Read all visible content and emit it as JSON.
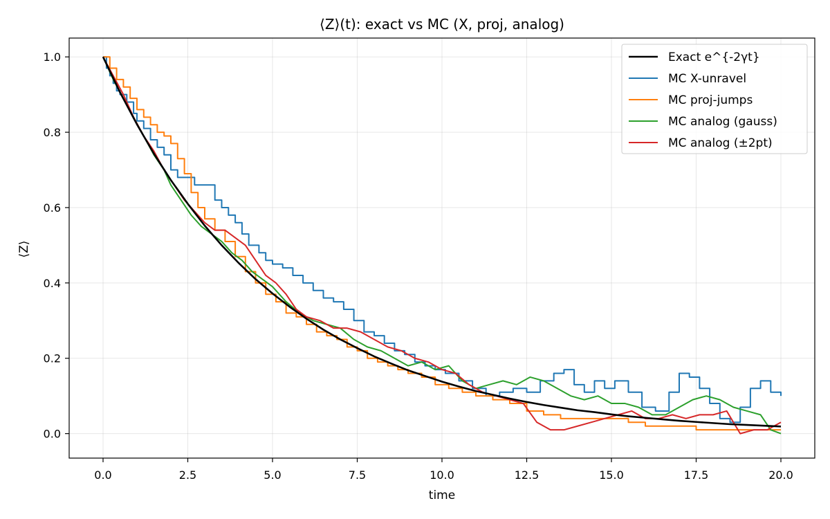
{
  "chart_data": {
    "type": "line",
    "title": "⟨Z⟩(t): exact vs MC (X, proj, analog)",
    "xlabel": "time",
    "ylabel": "⟨Z⟩",
    "xlim": [
      -1.0,
      21.0
    ],
    "ylim": [
      -0.065,
      1.05
    ],
    "xticks": [
      0,
      2.5,
      5,
      7.5,
      10,
      12.5,
      15,
      17.5,
      20
    ],
    "xtick_labels": [
      "0.0",
      "2.5",
      "5.0",
      "7.5",
      "10.0",
      "12.5",
      "15.0",
      "17.5",
      "20.0"
    ],
    "yticks": [
      0,
      0.2,
      0.4,
      0.6,
      0.8,
      1.0
    ],
    "ytick_labels": [
      "0.0",
      "0.2",
      "0.4",
      "0.6",
      "0.8",
      "1.0"
    ],
    "grid": true,
    "legend_position": "top-right",
    "series": [
      {
        "name": "Exact e^{-2γt}",
        "color": "#000000",
        "style": "smooth",
        "x": [
          0,
          0.5,
          1,
          1.5,
          2,
          2.5,
          3,
          3.5,
          4,
          4.5,
          5,
          5.5,
          6,
          6.5,
          7,
          7.5,
          8,
          8.5,
          9,
          9.5,
          10,
          10.5,
          11,
          11.5,
          12,
          12.5,
          13,
          13.5,
          14,
          14.5,
          15,
          15.5,
          16,
          16.5,
          17,
          17.5,
          18,
          18.5,
          19,
          19.5,
          20
        ],
        "y": [
          1.0,
          0.906,
          0.821,
          0.743,
          0.673,
          0.61,
          0.552,
          0.5,
          0.453,
          0.41,
          0.372,
          0.337,
          0.305,
          0.276,
          0.25,
          0.227,
          0.205,
          0.186,
          0.168,
          0.153,
          0.138,
          0.125,
          0.113,
          0.103,
          0.093,
          0.084,
          0.076,
          0.069,
          0.062,
          0.057,
          0.051,
          0.046,
          0.042,
          0.038,
          0.034,
          0.031,
          0.028,
          0.025,
          0.023,
          0.021,
          0.019
        ]
      },
      {
        "name": "MC X-unravel",
        "color": "#1f77b4",
        "style": "step",
        "x": [
          0,
          0.1,
          0.2,
          0.3,
          0.4,
          0.5,
          0.7,
          0.9,
          1.0,
          1.2,
          1.4,
          1.6,
          1.8,
          2.0,
          2.2,
          2.4,
          2.7,
          3.0,
          3.3,
          3.5,
          3.7,
          3.9,
          4.1,
          4.3,
          4.6,
          4.8,
          5.0,
          5.3,
          5.6,
          5.9,
          6.2,
          6.5,
          6.8,
          7.1,
          7.4,
          7.7,
          8.0,
          8.3,
          8.6,
          8.9,
          9.2,
          9.5,
          9.8,
          10.1,
          10.5,
          10.9,
          11.3,
          11.7,
          12.1,
          12.5,
          12.9,
          13.3,
          13.6,
          13.9,
          14.2,
          14.5,
          14.8,
          15.1,
          15.5,
          15.9,
          16.3,
          16.7,
          17.0,
          17.3,
          17.6,
          17.9,
          18.2,
          18.5,
          18.8,
          19.1,
          19.4,
          19.7,
          20.0
        ],
        "y": [
          1.0,
          0.97,
          0.95,
          0.93,
          0.91,
          0.9,
          0.88,
          0.85,
          0.83,
          0.81,
          0.78,
          0.76,
          0.74,
          0.7,
          0.68,
          0.68,
          0.66,
          0.66,
          0.62,
          0.6,
          0.58,
          0.56,
          0.53,
          0.5,
          0.48,
          0.46,
          0.45,
          0.44,
          0.42,
          0.4,
          0.38,
          0.36,
          0.35,
          0.33,
          0.3,
          0.27,
          0.26,
          0.24,
          0.22,
          0.21,
          0.19,
          0.18,
          0.17,
          0.16,
          0.14,
          0.12,
          0.1,
          0.11,
          0.12,
          0.11,
          0.14,
          0.16,
          0.17,
          0.13,
          0.11,
          0.14,
          0.12,
          0.14,
          0.11,
          0.07,
          0.06,
          0.11,
          0.16,
          0.15,
          0.12,
          0.08,
          0.04,
          0.03,
          0.07,
          0.12,
          0.14,
          0.11,
          0.1
        ]
      },
      {
        "name": "MC proj-jumps",
        "color": "#ff7f0e",
        "style": "step",
        "x": [
          0,
          0.2,
          0.4,
          0.6,
          0.8,
          1.0,
          1.2,
          1.4,
          1.6,
          1.8,
          2.0,
          2.2,
          2.4,
          2.6,
          2.8,
          3.0,
          3.3,
          3.6,
          3.9,
          4.2,
          4.5,
          4.8,
          5.1,
          5.4,
          5.7,
          6.0,
          6.3,
          6.6,
          6.9,
          7.2,
          7.5,
          7.8,
          8.1,
          8.4,
          8.7,
          9.0,
          9.4,
          9.8,
          10.2,
          10.6,
          11.0,
          11.5,
          12.0,
          12.5,
          13.0,
          13.5,
          14.0,
          14.5,
          15.0,
          15.5,
          16.0,
          16.5,
          17.0,
          17.5,
          18.0,
          18.5,
          19.0,
          19.5,
          20.0
        ],
        "y": [
          1.0,
          0.97,
          0.94,
          0.92,
          0.89,
          0.86,
          0.84,
          0.82,
          0.8,
          0.79,
          0.77,
          0.73,
          0.69,
          0.64,
          0.6,
          0.57,
          0.54,
          0.51,
          0.47,
          0.43,
          0.4,
          0.37,
          0.35,
          0.32,
          0.31,
          0.29,
          0.27,
          0.26,
          0.25,
          0.23,
          0.22,
          0.2,
          0.19,
          0.18,
          0.17,
          0.16,
          0.15,
          0.13,
          0.12,
          0.11,
          0.1,
          0.09,
          0.08,
          0.06,
          0.05,
          0.04,
          0.04,
          0.04,
          0.04,
          0.03,
          0.02,
          0.02,
          0.02,
          0.01,
          0.01,
          0.01,
          0.01,
          0.01,
          0.01
        ]
      },
      {
        "name": "MC analog (gauss)",
        "color": "#2ca02c",
        "style": "smooth",
        "x": [
          0,
          0.3,
          0.6,
          0.9,
          1.2,
          1.5,
          1.8,
          2.0,
          2.3,
          2.6,
          2.9,
          3.2,
          3.5,
          3.8,
          4.1,
          4.4,
          4.7,
          5.0,
          5.4,
          5.8,
          6.2,
          6.6,
          7.0,
          7.4,
          7.8,
          8.2,
          8.6,
          9.0,
          9.4,
          9.8,
          10.2,
          10.6,
          11.0,
          11.4,
          11.8,
          12.2,
          12.6,
          13.0,
          13.4,
          13.8,
          14.2,
          14.6,
          15.0,
          15.4,
          15.8,
          16.2,
          16.6,
          17.0,
          17.4,
          17.8,
          18.2,
          18.6,
          19.0,
          19.4,
          19.7,
          20.0
        ],
        "y": [
          1.0,
          0.94,
          0.89,
          0.84,
          0.79,
          0.74,
          0.7,
          0.66,
          0.62,
          0.58,
          0.55,
          0.53,
          0.51,
          0.48,
          0.46,
          0.43,
          0.41,
          0.39,
          0.35,
          0.32,
          0.3,
          0.29,
          0.28,
          0.25,
          0.23,
          0.22,
          0.2,
          0.18,
          0.19,
          0.17,
          0.18,
          0.14,
          0.12,
          0.13,
          0.14,
          0.13,
          0.15,
          0.14,
          0.12,
          0.1,
          0.09,
          0.1,
          0.08,
          0.08,
          0.07,
          0.05,
          0.05,
          0.07,
          0.09,
          0.1,
          0.09,
          0.07,
          0.06,
          0.05,
          0.01,
          0.0
        ]
      },
      {
        "name": "MC analog (±2pt)",
        "color": "#d62728",
        "style": "smooth",
        "x": [
          0,
          0.3,
          0.6,
          0.9,
          1.2,
          1.5,
          1.8,
          2.1,
          2.4,
          2.7,
          3.0,
          3.3,
          3.6,
          3.9,
          4.2,
          4.5,
          4.8,
          5.1,
          5.4,
          5.7,
          6.0,
          6.4,
          6.8,
          7.2,
          7.6,
          8.0,
          8.4,
          8.8,
          9.2,
          9.6,
          10.0,
          10.4,
          10.8,
          11.2,
          11.6,
          12.0,
          12.4,
          12.8,
          13.2,
          13.6,
          14.0,
          14.4,
          14.8,
          15.2,
          15.6,
          16.0,
          16.4,
          16.8,
          17.2,
          17.6,
          18.0,
          18.4,
          18.8,
          19.2,
          19.6,
          20.0
        ],
        "y": [
          1.0,
          0.95,
          0.9,
          0.84,
          0.79,
          0.75,
          0.7,
          0.66,
          0.62,
          0.59,
          0.56,
          0.54,
          0.54,
          0.52,
          0.5,
          0.46,
          0.42,
          0.4,
          0.37,
          0.33,
          0.31,
          0.3,
          0.28,
          0.28,
          0.27,
          0.25,
          0.23,
          0.22,
          0.2,
          0.19,
          0.17,
          0.16,
          0.13,
          0.11,
          0.1,
          0.09,
          0.08,
          0.03,
          0.01,
          0.01,
          0.02,
          0.03,
          0.04,
          0.05,
          0.06,
          0.04,
          0.04,
          0.05,
          0.04,
          0.05,
          0.05,
          0.06,
          0.0,
          0.01,
          0.01,
          0.03
        ]
      }
    ]
  }
}
